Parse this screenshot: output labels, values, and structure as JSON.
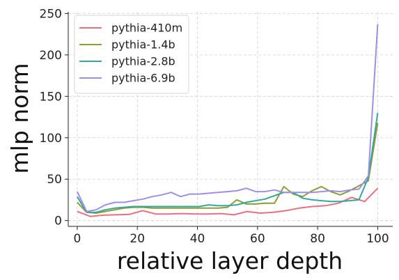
{
  "chart_data": {
    "type": "line",
    "title": "",
    "xlabel": "relative layer depth",
    "ylabel": "mlp norm",
    "xlim": [
      -3,
      105
    ],
    "ylim": [
      -7,
      252
    ],
    "xticks": [
      0,
      20,
      40,
      60,
      80,
      100
    ],
    "yticks": [
      0,
      50,
      100,
      150,
      200,
      250
    ],
    "grid": true,
    "legend_position": "top-left",
    "series": [
      {
        "name": "pythia-410m",
        "color": "#e8707f",
        "x": [
          0,
          4.35,
          8.7,
          13.04,
          17.39,
          21.74,
          26.09,
          30.43,
          34.78,
          39.13,
          43.48,
          47.83,
          52.17,
          56.52,
          60.87,
          65.22,
          69.57,
          73.91,
          78.26,
          82.61,
          86.96,
          91.3,
          95.65,
          100
        ],
        "values": [
          11,
          5,
          6.5,
          7,
          7.5,
          12,
          8,
          8,
          8.5,
          8,
          8,
          8.5,
          7,
          11,
          9,
          10,
          12,
          15,
          17,
          18,
          21,
          28,
          23,
          39
        ]
      },
      {
        "name": "pythia-1.4b",
        "color": "#8e9c36",
        "x": [
          0,
          3.13,
          6.25,
          9.38,
          12.5,
          15.63,
          18.75,
          21.88,
          25,
          28.13,
          31.25,
          34.38,
          37.5,
          40.63,
          43.75,
          46.88,
          50,
          53.13,
          56.25,
          59.38,
          62.5,
          65.63,
          68.75,
          71.88,
          75,
          78.13,
          81.25,
          84.38,
          87.5,
          90.63,
          93.75,
          96.88,
          100
        ],
        "values": [
          22,
          10,
          9,
          11,
          13,
          15,
          16,
          16,
          15,
          15,
          15,
          15,
          15,
          15,
          15,
          15,
          16,
          25,
          20,
          20,
          21,
          21,
          41,
          32,
          29,
          36,
          41,
          35,
          31,
          36,
          42,
          48,
          118
        ]
      },
      {
        "name": "pythia-2.8b",
        "color": "#36a89b",
        "x": [
          0,
          3.13,
          6.25,
          9.38,
          12.5,
          15.63,
          18.75,
          21.88,
          25,
          28.13,
          31.25,
          34.38,
          37.5,
          40.63,
          43.75,
          46.88,
          50,
          53.13,
          56.25,
          59.38,
          62.5,
          65.63,
          68.75,
          71.88,
          75,
          78.13,
          81.25,
          84.38,
          87.5,
          90.63,
          93.75,
          96.88,
          100
        ],
        "values": [
          29,
          10,
          10,
          13,
          15,
          16,
          17,
          17,
          17,
          17,
          17,
          17,
          17,
          17,
          19,
          18,
          18,
          19,
          22,
          24,
          26,
          30,
          34,
          34,
          27,
          25,
          24,
          23,
          23,
          24,
          25,
          52,
          130
        ]
      },
      {
        "name": "pythia-6.9b",
        "color": "#9d8ee8",
        "x": [
          0,
          3.13,
          6.25,
          9.38,
          12.5,
          15.63,
          18.75,
          21.88,
          25,
          28.13,
          31.25,
          34.38,
          37.5,
          40.63,
          43.75,
          46.88,
          50,
          53.13,
          56.25,
          59.38,
          62.5,
          65.63,
          68.75,
          71.88,
          75,
          78.13,
          81.25,
          84.38,
          87.5,
          90.63,
          93.75,
          96.88,
          100
        ],
        "values": [
          35,
          11,
          13,
          19,
          22,
          22,
          24,
          26,
          29,
          31,
          34,
          29,
          32,
          32,
          33,
          34,
          35,
          36,
          39,
          35,
          35,
          37,
          34,
          34,
          34,
          34,
          35,
          36,
          35,
          37,
          38,
          54,
          237
        ]
      }
    ]
  }
}
